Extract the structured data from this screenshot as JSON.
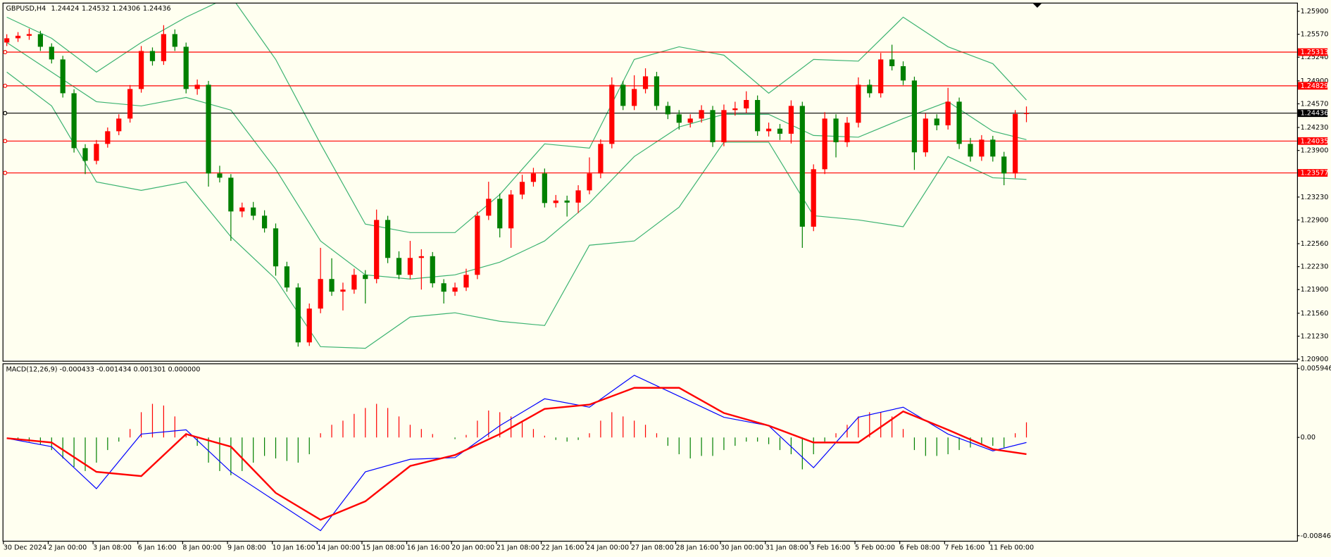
{
  "chart_data": [
    {
      "type": "candlestick",
      "title": "GBPUSD,H4",
      "categories": [
        "30 Dec 2024",
        null,
        null,
        null,
        "2 Jan 00:00",
        null,
        null,
        null,
        "3 Jan 08:00",
        null,
        null,
        null,
        "6 Jan 16:00",
        null,
        null,
        null,
        "8 Jan 00:00",
        null,
        null,
        null,
        "9 Jan 08:00",
        null,
        null,
        null,
        "10 Jan 16:00",
        null,
        null,
        null,
        "14 Jan 00:00",
        null,
        null,
        null,
        "15 Jan 08:00",
        null,
        null,
        null,
        "16 Jan 16:00",
        null,
        null,
        null,
        "20 Jan 00:00",
        null,
        null,
        null,
        "21 Jan 08:00",
        null,
        null,
        null,
        "22 Jan 16:00",
        null,
        null,
        null,
        "24 Jan 00:00",
        null,
        null,
        null,
        "27 Jan 08:00",
        null,
        null,
        null,
        "28 Jan 16:00",
        null,
        null,
        null,
        "30 Jan 00:00",
        null,
        null,
        null,
        "31 Jan 08:00",
        null,
        null,
        null,
        "3 Feb 16:00",
        null,
        null,
        null,
        "5 Feb 00:00",
        null,
        null,
        null,
        "6 Feb 08:00",
        null,
        null,
        null,
        "7 Feb 16:00",
        null,
        null,
        null,
        "11 Feb 00:00",
        null,
        null,
        null
      ],
      "ohlc": [
        [
          1.25451,
          1.2557,
          1.254,
          1.25512
        ],
        [
          1.25512,
          1.256,
          1.2546,
          1.25548
        ],
        [
          1.25548,
          1.2565,
          1.2549,
          1.25572
        ],
        [
          1.25572,
          1.2562,
          1.2533,
          1.2539
        ],
        [
          1.2539,
          1.2544,
          1.2515,
          1.25208
        ],
        [
          1.25208,
          1.2526,
          1.2466,
          1.24722
        ],
        [
          1.24722,
          1.2478,
          1.2387,
          1.23933
        ],
        [
          1.23933,
          1.2399,
          1.2356,
          1.23751
        ],
        [
          1.23751,
          1.2405,
          1.237,
          1.23994
        ],
        [
          1.23994,
          1.2423,
          1.2394,
          1.24176
        ],
        [
          1.24176,
          1.2442,
          1.2412,
          1.24358
        ],
        [
          1.24358,
          1.2484,
          1.243,
          1.24783
        ],
        [
          1.24783,
          1.254,
          1.2473,
          1.25329
        ],
        [
          1.25329,
          1.2538,
          1.2512,
          1.25184
        ],
        [
          1.25184,
          1.257,
          1.2513,
          1.25572
        ],
        [
          1.25572,
          1.2564,
          1.2533,
          1.2539
        ],
        [
          1.2539,
          1.2545,
          1.2472,
          1.24783
        ],
        [
          1.24783,
          1.2492,
          1.247,
          1.24844
        ],
        [
          1.24844,
          1.249,
          1.2338,
          1.23569
        ],
        [
          1.23569,
          1.2368,
          1.2344,
          1.23508
        ],
        [
          1.23508,
          1.2356,
          1.226,
          1.23023
        ],
        [
          1.23023,
          1.2315,
          1.2294,
          1.2308
        ],
        [
          1.2308,
          1.2316,
          1.229,
          1.22962
        ],
        [
          1.22962,
          1.2304,
          1.2272,
          1.2278
        ],
        [
          1.2278,
          1.2285,
          1.221,
          1.22234
        ],
        [
          1.22234,
          1.223,
          1.2187,
          1.2193
        ],
        [
          1.2193,
          1.2199,
          1.2108,
          1.21141
        ],
        [
          1.21141,
          1.217,
          1.2109,
          1.21627
        ],
        [
          1.21627,
          1.225,
          1.2156,
          1.22052
        ],
        [
          1.22052,
          1.2235,
          1.2181,
          1.2187
        ],
        [
          1.2187,
          1.22,
          1.216,
          1.219
        ],
        [
          1.219,
          1.222,
          1.2184,
          1.22112
        ],
        [
          1.22112,
          1.2218,
          1.217,
          1.22052
        ],
        [
          1.22052,
          1.2305,
          1.2199,
          1.22901
        ],
        [
          1.22901,
          1.2296,
          1.2228,
          1.22355
        ],
        [
          1.22355,
          1.2245,
          1.2205,
          1.22112
        ],
        [
          1.22112,
          1.226,
          1.2205,
          1.22355
        ],
        [
          1.22355,
          1.2248,
          1.219,
          1.2238
        ],
        [
          1.2238,
          1.2244,
          1.2193,
          1.21991
        ],
        [
          1.21991,
          1.2205,
          1.217,
          1.2187
        ],
        [
          1.2187,
          1.22,
          1.2181,
          1.2193
        ],
        [
          1.2193,
          1.222,
          1.2188,
          1.22112
        ],
        [
          1.22112,
          1.2302,
          1.2205,
          1.22962
        ],
        [
          1.22962,
          1.2345,
          1.229,
          1.23205
        ],
        [
          1.23205,
          1.2328,
          1.2265,
          1.2278
        ],
        [
          1.2278,
          1.2333,
          1.225,
          1.23266
        ],
        [
          1.23266,
          1.2355,
          1.232,
          1.23448
        ],
        [
          1.23448,
          1.2365,
          1.2338,
          1.23569
        ],
        [
          1.23569,
          1.2364,
          1.2308,
          1.23144
        ],
        [
          1.23144,
          1.2326,
          1.2308,
          1.2318
        ],
        [
          1.2318,
          1.2325,
          1.2295,
          1.2315
        ],
        [
          1.2315,
          1.234,
          1.23,
          1.23326
        ],
        [
          1.23326,
          1.238,
          1.2327,
          1.23569
        ],
        [
          1.23569,
          1.2406,
          1.235,
          1.23994
        ],
        [
          1.23994,
          1.2495,
          1.2393,
          1.24844
        ],
        [
          1.24844,
          1.249,
          1.2448,
          1.2454
        ],
        [
          1.2454,
          1.2498,
          1.2448,
          1.24783
        ],
        [
          1.24783,
          1.2508,
          1.2472,
          1.24965
        ],
        [
          1.24965,
          1.2503,
          1.2448,
          1.2454
        ],
        [
          1.2454,
          1.246,
          1.2435,
          1.24419
        ],
        [
          1.24419,
          1.2448,
          1.242,
          1.24298
        ],
        [
          1.24298,
          1.2442,
          1.2423,
          1.24358
        ],
        [
          1.24358,
          1.2455,
          1.243,
          1.2448
        ],
        [
          1.2448,
          1.2454,
          1.2395,
          1.24018
        ],
        [
          1.24018,
          1.2456,
          1.2396,
          1.2448
        ],
        [
          1.2448,
          1.246,
          1.244,
          1.24504
        ],
        [
          1.24504,
          1.2475,
          1.2444,
          1.24625
        ],
        [
          1.24625,
          1.2469,
          1.2411,
          1.24176
        ],
        [
          1.24176,
          1.243,
          1.241,
          1.24213
        ],
        [
          1.24213,
          1.2428,
          1.2405,
          1.2414
        ],
        [
          1.2414,
          1.2462,
          1.24,
          1.2454
        ],
        [
          1.2454,
          1.246,
          1.225,
          1.22804
        ],
        [
          1.22804,
          1.237,
          1.2274,
          1.2363
        ],
        [
          1.2363,
          1.2445,
          1.2356,
          1.24358
        ],
        [
          1.24358,
          1.2442,
          1.238,
          1.24018
        ],
        [
          1.24018,
          1.2438,
          1.2395,
          1.24298
        ],
        [
          1.24298,
          1.2495,
          1.2423,
          1.24844
        ],
        [
          1.24844,
          1.2492,
          1.2466,
          1.24722
        ],
        [
          1.24722,
          1.253,
          1.2466,
          1.25208
        ],
        [
          1.25208,
          1.2542,
          1.2505,
          1.25111
        ],
        [
          1.25111,
          1.2518,
          1.2484,
          1.24905
        ],
        [
          1.24905,
          1.2496,
          1.2362,
          1.23873
        ],
        [
          1.23873,
          1.2443,
          1.2381,
          1.24358
        ],
        [
          1.24358,
          1.2442,
          1.2419,
          1.24261
        ],
        [
          1.24261,
          1.248,
          1.242,
          1.24601
        ],
        [
          1.24601,
          1.2466,
          1.2392,
          1.23994
        ],
        [
          1.23994,
          1.2408,
          1.2374,
          1.23812
        ],
        [
          1.23812,
          1.2412,
          1.2375,
          1.24055
        ],
        [
          1.24055,
          1.2411,
          1.2374,
          1.23812
        ],
        [
          1.23812,
          1.2388,
          1.234,
          1.23569
        ],
        [
          1.23569,
          1.2448,
          1.235,
          1.24424
        ],
        [
          1.24424,
          1.24532,
          1.24306,
          1.24436
        ]
      ],
      "up_color": "#ff0000",
      "down_color": "#008000",
      "ylim": [
        1.20876,
        1.26012
      ],
      "yticks": [
        {
          "value": 1.259,
          "label": "1.25900"
        },
        {
          "value": 1.2557,
          "label": "1.25570"
        },
        {
          "value": 1.2524,
          "label": "1.25240"
        },
        {
          "value": 1.249,
          "label": "1.24900"
        },
        {
          "value": 1.2457,
          "label": "1.24570"
        },
        {
          "value": 1.2423,
          "label": "1.24230"
        },
        {
          "value": 1.239,
          "label": "1.23900"
        },
        {
          "value": 1.2323,
          "label": "1.23230"
        },
        {
          "value": 1.229,
          "label": "1.22900"
        },
        {
          "value": 1.2256,
          "label": "1.22560"
        },
        {
          "value": 1.2223,
          "label": "1.22230"
        },
        {
          "value": 1.219,
          "label": "1.21900"
        },
        {
          "value": 1.2156,
          "label": "1.21560"
        },
        {
          "value": 1.2123,
          "label": "1.21230"
        },
        {
          "value": 1.209,
          "label": "1.20900"
        }
      ],
      "levels": [
        {
          "value": 1.25313,
          "color": "#ff0000"
        },
        {
          "value": 1.24829,
          "color": "#ff0000"
        },
        {
          "value": 1.24436,
          "color": "#000000"
        },
        {
          "value": 1.24035,
          "color": "#ff0000"
        },
        {
          "value": 1.23577,
          "color": "#ff0000"
        }
      ],
      "bands": {
        "x": [
          0,
          4,
          8,
          12,
          16,
          20,
          24,
          28,
          32,
          36,
          40,
          44,
          48,
          52,
          56,
          60,
          64,
          68,
          72,
          76,
          80,
          84,
          88,
          91
        ],
        "color": "#3cb371",
        "series": [
          {
            "values": [
              1.25815,
              1.25512,
              1.25026,
              1.25451,
              1.25815,
              1.26119,
              1.25208,
              1.23994,
              1.22841,
              1.22719,
              1.22719,
              1.23266,
              1.23994,
              1.23933,
              1.25208,
              1.2539,
              1.25269,
              1.24722,
              1.25208,
              1.25184,
              1.25815,
              1.2539,
              1.25147,
              1.24625
            ]
          },
          {
            "values": [
              1.25451,
              1.25026,
              1.24601,
              1.2454,
              1.24662,
              1.2448,
              1.2363,
              1.22598,
              1.22112,
              1.22052,
              1.22112,
              1.22294,
              1.22598,
              1.23144,
              1.23812,
              1.24237,
              1.24419,
              1.24419,
              1.24115,
              1.24091,
              1.24358,
              1.24601,
              1.24176,
              1.24055
            ]
          },
          {
            "values": [
              1.25026,
              1.2454,
              1.23448,
              1.23326,
              1.23448,
              1.22659,
              1.22052,
              1.2108,
              1.21056,
              1.21505,
              1.21566,
              1.21444,
              1.21384,
              1.22537,
              1.22598,
              1.23084,
              1.24018,
              1.24018,
              1.22962,
              1.22901,
              1.22804,
              1.23812,
              1.23508,
              1.23484
            ]
          }
        ]
      }
    },
    {
      "type": "macd",
      "title": "MACD(12,26,9) -0.000433 -0.001434 0.001301 0.000000",
      "histogram": [
        0,
        -0.000217,
        -0.000362,
        -0.000579,
        -0.001086,
        -0.00181,
        -0.002534,
        -0.002896,
        -0.002172,
        -0.001086,
        -0.000362,
        0.000724,
        0.002172,
        0.002896,
        0.002751,
        0.00181,
        0.000362,
        -0.000724,
        -0.002172,
        -0.002896,
        -0.003258,
        -0.002896,
        -0.002172,
        -0.001593,
        -0.00181,
        -0.002027,
        -0.002172,
        -0.001448,
        0.000362,
        0.001086,
        0.001448,
        0.002027,
        0.002534,
        0.002896,
        0.002534,
        0.00181,
        0.001086,
        0.000724,
        0.00029,
        0,
        -0.000145,
        0.000217,
        0.001448,
        0.002317,
        0.002172,
        0.00181,
        0.001303,
        0.000724,
        0.000145,
        -0.000217,
        -0.000362,
        -0.000217,
        0.000362,
        0.001448,
        0.002172,
        0.00181,
        0.001448,
        0.001086,
        0.000362,
        -0.000724,
        -0.001448,
        -0.00181,
        -0.001593,
        -0.001593,
        -0.001086,
        -0.000724,
        -0.000362,
        -0.000362,
        -0.000579,
        -0.001086,
        -0.001448,
        -0.002751,
        -0.001448,
        -0.000362,
        0.000362,
        0.001086,
        0.00181,
        0.002172,
        0.002172,
        0.00181,
        0.000724,
        -0.001086,
        -0.001593,
        -0.001593,
        -0.001448,
        -0.001086,
        -0.000869,
        -0.000579,
        -0.000724,
        -0.000869,
        0.000362,
        0.001301
      ],
      "pos_color": "#ff0000",
      "neg_color": "#008000",
      "x": [
        0,
        4,
        8,
        12,
        16,
        20,
        24,
        28,
        32,
        36,
        40,
        44,
        48,
        52,
        56,
        60,
        64,
        68,
        72,
        76,
        80,
        84,
        88,
        91
      ],
      "series": [
        {
          "color": "#0000ff",
          "values": [
            -7.2e-05,
            -0.000796,
            -0.004416,
            0.00029,
            0.000652,
            -0.002968,
            -0.005502,
            -0.008036,
            -0.002968,
            -0.001882,
            -0.001738,
            0.001014,
            0.00333,
            0.002606,
            0.005357,
            0.003548,
            0.001738,
            0.001014,
            -0.002606,
            0.001738,
            0.002606,
            0.00029,
            -0.001158,
            -0.000433
          ]
        },
        {
          "color": "#ff0000",
          "values": [
            -7.2e-05,
            -0.000434,
            -0.002968,
            -0.003331,
            0.00029,
            -0.000796,
            -0.004778,
            -0.007095,
            -0.005502,
            -0.002462,
            -0.00152,
            0.00029,
            0.002462,
            0.002824,
            0.004272,
            0.004272,
            0.0021,
            0.001014,
            -0.000434,
            -0.000434,
            0.002244,
            0.000652,
            -0.001014,
            -0.001434
          ]
        }
      ],
      "ylim": [
        -0.00883,
        0.00616
      ],
      "yticks": [
        0.005946,
        {
          "value": 0,
          "label": "0.00"
        },
        -0.008469
      ]
    }
  ]
}
